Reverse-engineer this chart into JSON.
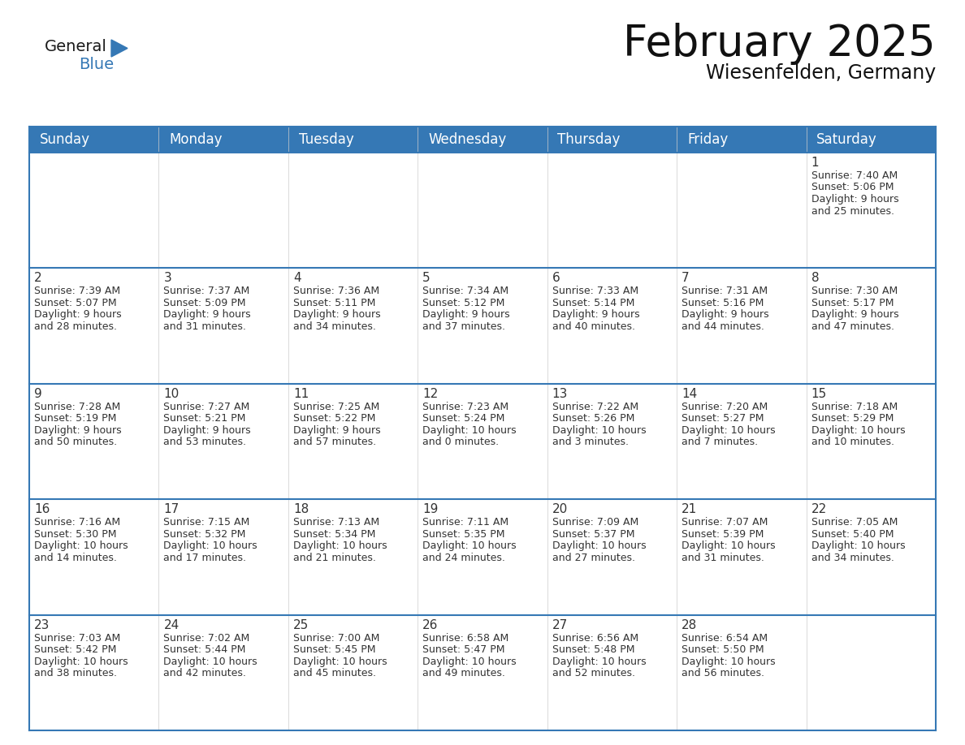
{
  "title": "February 2025",
  "subtitle": "Wiesenfelden, Germany",
  "header_color": "#3578B5",
  "header_text_color": "#FFFFFF",
  "cell_bg_white": "#FFFFFF",
  "cell_bg_gray": "#F2F2F2",
  "separator_color": "#3578B5",
  "text_color": "#333333",
  "day_names": [
    "Sunday",
    "Monday",
    "Tuesday",
    "Wednesday",
    "Thursday",
    "Friday",
    "Saturday"
  ],
  "title_fontsize": 38,
  "subtitle_fontsize": 17,
  "header_fontsize": 12,
  "day_num_fontsize": 11,
  "info_fontsize": 9,
  "logo_text_general": "General",
  "logo_text_blue": "Blue",
  "triangle_color": "#3578B5",
  "weeks": [
    [
      {
        "day": "",
        "info": ""
      },
      {
        "day": "",
        "info": ""
      },
      {
        "day": "",
        "info": ""
      },
      {
        "day": "",
        "info": ""
      },
      {
        "day": "",
        "info": ""
      },
      {
        "day": "",
        "info": ""
      },
      {
        "day": "1",
        "info": "Sunrise: 7:40 AM\nSunset: 5:06 PM\nDaylight: 9 hours\nand 25 minutes."
      }
    ],
    [
      {
        "day": "2",
        "info": "Sunrise: 7:39 AM\nSunset: 5:07 PM\nDaylight: 9 hours\nand 28 minutes."
      },
      {
        "day": "3",
        "info": "Sunrise: 7:37 AM\nSunset: 5:09 PM\nDaylight: 9 hours\nand 31 minutes."
      },
      {
        "day": "4",
        "info": "Sunrise: 7:36 AM\nSunset: 5:11 PM\nDaylight: 9 hours\nand 34 minutes."
      },
      {
        "day": "5",
        "info": "Sunrise: 7:34 AM\nSunset: 5:12 PM\nDaylight: 9 hours\nand 37 minutes."
      },
      {
        "day": "6",
        "info": "Sunrise: 7:33 AM\nSunset: 5:14 PM\nDaylight: 9 hours\nand 40 minutes."
      },
      {
        "day": "7",
        "info": "Sunrise: 7:31 AM\nSunset: 5:16 PM\nDaylight: 9 hours\nand 44 minutes."
      },
      {
        "day": "8",
        "info": "Sunrise: 7:30 AM\nSunset: 5:17 PM\nDaylight: 9 hours\nand 47 minutes."
      }
    ],
    [
      {
        "day": "9",
        "info": "Sunrise: 7:28 AM\nSunset: 5:19 PM\nDaylight: 9 hours\nand 50 minutes."
      },
      {
        "day": "10",
        "info": "Sunrise: 7:27 AM\nSunset: 5:21 PM\nDaylight: 9 hours\nand 53 minutes."
      },
      {
        "day": "11",
        "info": "Sunrise: 7:25 AM\nSunset: 5:22 PM\nDaylight: 9 hours\nand 57 minutes."
      },
      {
        "day": "12",
        "info": "Sunrise: 7:23 AM\nSunset: 5:24 PM\nDaylight: 10 hours\nand 0 minutes."
      },
      {
        "day": "13",
        "info": "Sunrise: 7:22 AM\nSunset: 5:26 PM\nDaylight: 10 hours\nand 3 minutes."
      },
      {
        "day": "14",
        "info": "Sunrise: 7:20 AM\nSunset: 5:27 PM\nDaylight: 10 hours\nand 7 minutes."
      },
      {
        "day": "15",
        "info": "Sunrise: 7:18 AM\nSunset: 5:29 PM\nDaylight: 10 hours\nand 10 minutes."
      }
    ],
    [
      {
        "day": "16",
        "info": "Sunrise: 7:16 AM\nSunset: 5:30 PM\nDaylight: 10 hours\nand 14 minutes."
      },
      {
        "day": "17",
        "info": "Sunrise: 7:15 AM\nSunset: 5:32 PM\nDaylight: 10 hours\nand 17 minutes."
      },
      {
        "day": "18",
        "info": "Sunrise: 7:13 AM\nSunset: 5:34 PM\nDaylight: 10 hours\nand 21 minutes."
      },
      {
        "day": "19",
        "info": "Sunrise: 7:11 AM\nSunset: 5:35 PM\nDaylight: 10 hours\nand 24 minutes."
      },
      {
        "day": "20",
        "info": "Sunrise: 7:09 AM\nSunset: 5:37 PM\nDaylight: 10 hours\nand 27 minutes."
      },
      {
        "day": "21",
        "info": "Sunrise: 7:07 AM\nSunset: 5:39 PM\nDaylight: 10 hours\nand 31 minutes."
      },
      {
        "day": "22",
        "info": "Sunrise: 7:05 AM\nSunset: 5:40 PM\nDaylight: 10 hours\nand 34 minutes."
      }
    ],
    [
      {
        "day": "23",
        "info": "Sunrise: 7:03 AM\nSunset: 5:42 PM\nDaylight: 10 hours\nand 38 minutes."
      },
      {
        "day": "24",
        "info": "Sunrise: 7:02 AM\nSunset: 5:44 PM\nDaylight: 10 hours\nand 42 minutes."
      },
      {
        "day": "25",
        "info": "Sunrise: 7:00 AM\nSunset: 5:45 PM\nDaylight: 10 hours\nand 45 minutes."
      },
      {
        "day": "26",
        "info": "Sunrise: 6:58 AM\nSunset: 5:47 PM\nDaylight: 10 hours\nand 49 minutes."
      },
      {
        "day": "27",
        "info": "Sunrise: 6:56 AM\nSunset: 5:48 PM\nDaylight: 10 hours\nand 52 minutes."
      },
      {
        "day": "28",
        "info": "Sunrise: 6:54 AM\nSunset: 5:50 PM\nDaylight: 10 hours\nand 56 minutes."
      },
      {
        "day": "",
        "info": ""
      }
    ]
  ]
}
